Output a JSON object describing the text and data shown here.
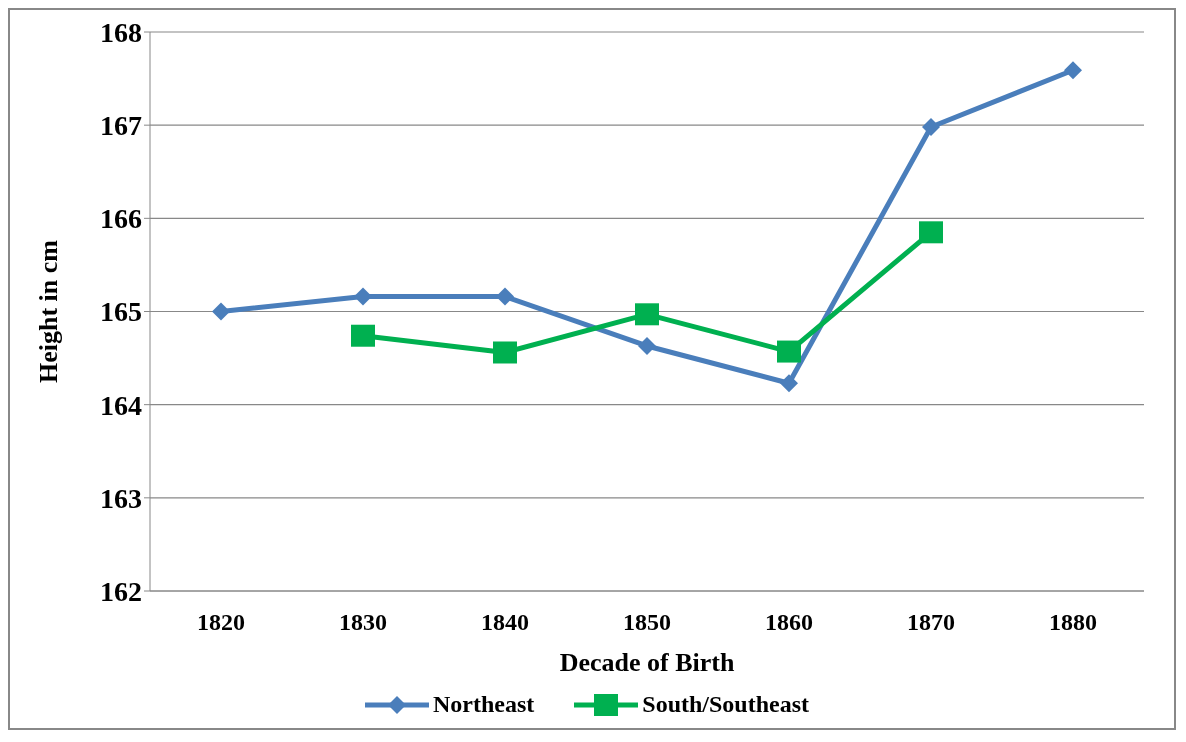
{
  "chart_data": {
    "type": "line",
    "xlabel": "Decade of Birth",
    "ylabel": "Height in cm",
    "categories": [
      "1820",
      "1830",
      "1840",
      "1850",
      "1860",
      "1870",
      "1880"
    ],
    "series": [
      {
        "name": "Northeast",
        "color": "#4a7ebb",
        "marker": "diamond",
        "values": [
          165.0,
          165.16,
          165.16,
          164.63,
          164.23,
          166.98,
          167.59
        ]
      },
      {
        "name": "South/Southeast",
        "color": "#00b050",
        "marker": "square",
        "values": [
          null,
          164.74,
          164.56,
          164.97,
          164.57,
          165.85,
          null
        ]
      }
    ],
    "ylim": [
      162,
      168
    ],
    "yticks": [
      162,
      163,
      164,
      165,
      166,
      167,
      168
    ],
    "grid": "y",
    "legend": "bottom",
    "line_style": "solid"
  }
}
